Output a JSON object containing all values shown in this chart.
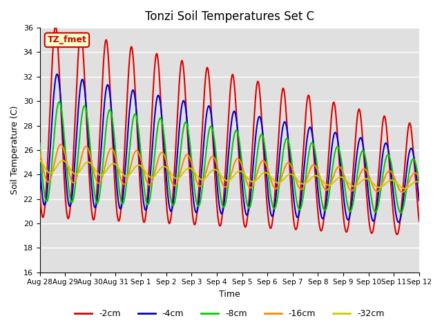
{
  "title": "Tonzi Soil Temperatures Set C",
  "xlabel": "Time",
  "ylabel": "Soil Temperature (C)",
  "ylim": [
    16,
    36
  ],
  "xlim": [
    0,
    360
  ],
  "bg_color": "#e0e0e0",
  "fig_color": "#ffffff",
  "grid_color": "#ffffff",
  "annotation_text": "TZ_fmet",
  "annotation_bg": "#ffffcc",
  "annotation_border": "#cc0000",
  "xtick_positions": [
    0,
    24,
    48,
    72,
    96,
    120,
    144,
    168,
    192,
    216,
    240,
    264,
    288,
    312,
    336,
    360
  ],
  "xtick_labels": [
    "Aug 28",
    "Aug 29",
    "Aug 30",
    "Aug 31",
    "Sep 1",
    "Sep 2",
    "Sep 3",
    "Sep 4",
    "Sep 5",
    "Sep 6",
    "Sep 7",
    "Sep 8",
    "Sep 9",
    "Sep 10",
    "Sep 11",
    "Sep 12"
  ],
  "ytick_positions": [
    16,
    18,
    20,
    22,
    24,
    26,
    28,
    30,
    32,
    34,
    36
  ],
  "series": {
    "-2cm": {
      "color": "#dd0000",
      "lw": 1.5
    },
    "-4cm": {
      "color": "#0000cc",
      "lw": 1.5
    },
    "-8cm": {
      "color": "#00cc00",
      "lw": 1.5
    },
    "-16cm": {
      "color": "#ff8800",
      "lw": 1.5
    },
    "-32cm": {
      "color": "#cccc00",
      "lw": 1.5
    }
  },
  "legend_labels": [
    "-2cm",
    "-4cm",
    "-8cm",
    "-16cm",
    "-32cm"
  ],
  "legend_colors": [
    "#dd0000",
    "#0000cc",
    "#00cc00",
    "#ff8800",
    "#cccc00"
  ]
}
